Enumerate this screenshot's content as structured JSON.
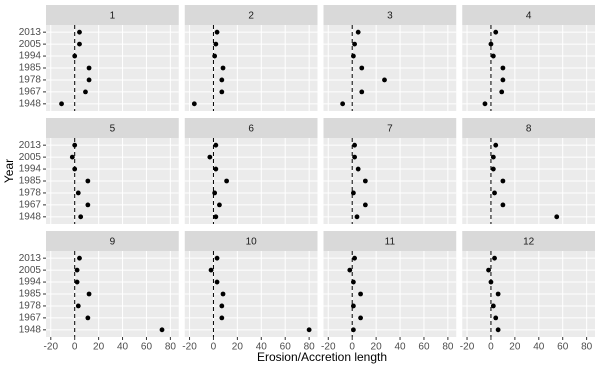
{
  "chart_data": {
    "type": "scatter",
    "x_label": "Erosion/Accretion length",
    "y_label": "Year",
    "categories": [
      "1948",
      "1967",
      "1978",
      "1985",
      "1994",
      "2005",
      "2013"
    ],
    "xlim": [
      -24,
      87
    ],
    "xticks": [
      -20,
      0,
      20,
      40,
      60,
      80
    ],
    "vline": 0,
    "color": "#000000",
    "grid": true,
    "facets": [
      {
        "title": "1",
        "values": [
          -11,
          9,
          12,
          12,
          0,
          4,
          4
        ]
      },
      {
        "title": "2",
        "values": [
          -16,
          7,
          7,
          8,
          1,
          2,
          3
        ]
      },
      {
        "title": "3",
        "values": [
          -8,
          8,
          27,
          8,
          1,
          2,
          5
        ]
      },
      {
        "title": "4",
        "values": [
          -5,
          9,
          10,
          10,
          2,
          0,
          4
        ]
      },
      {
        "title": "5",
        "values": [
          5,
          11,
          3,
          11,
          0,
          -2,
          0
        ]
      },
      {
        "title": "6",
        "values": [
          2,
          5,
          1,
          11,
          2,
          -3,
          2
        ]
      },
      {
        "title": "7",
        "values": [
          4,
          11,
          1,
          11,
          5,
          2,
          2
        ]
      },
      {
        "title": "8",
        "values": [
          55,
          10,
          3,
          10,
          2,
          2,
          4
        ]
      },
      {
        "title": "9",
        "values": [
          73,
          11,
          3,
          12,
          2,
          2,
          4
        ]
      },
      {
        "title": "10",
        "values": [
          80,
          7,
          7,
          8,
          3,
          -2,
          3
        ]
      },
      {
        "title": "11",
        "values": [
          1,
          7,
          1,
          7,
          1,
          -2,
          2
        ]
      },
      {
        "title": "12",
        "values": [
          6,
          4,
          2,
          6,
          0,
          -2,
          3
        ]
      }
    ]
  }
}
